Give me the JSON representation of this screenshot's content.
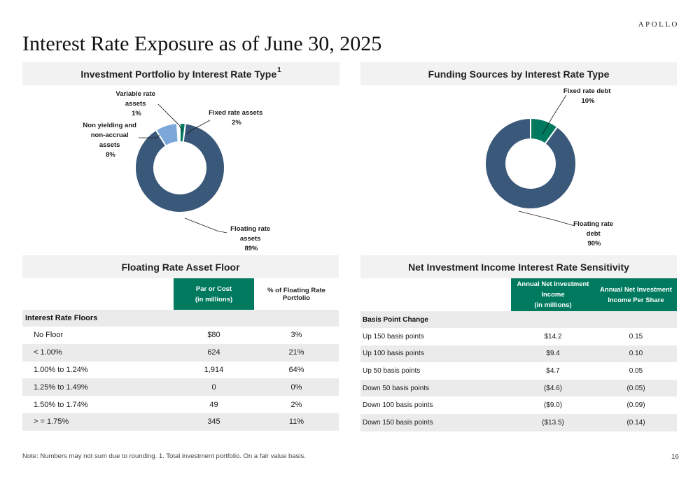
{
  "brand": "APOLLO",
  "title": "Interest Rate Exposure as of June 30, 2025",
  "investment_chart": {
    "header": "Investment Portfolio by Interest Rate Type",
    "header_sup": "1",
    "labels": {
      "variable": [
        "Variable rate",
        "assets",
        "1%"
      ],
      "fixed": [
        "Fixed rate assets",
        "2%"
      ],
      "nonyield": [
        "Non yielding and",
        "non-accrual",
        "assets",
        "8%"
      ],
      "floating": [
        "Floating rate",
        "assets",
        "89%"
      ]
    }
  },
  "funding_chart": {
    "header": "Funding Sources by Interest Rate Type",
    "labels": {
      "fixed": [
        "Fixed rate debt",
        "10%"
      ],
      "floating": [
        "Floating rate",
        "debt",
        "90%"
      ]
    }
  },
  "chart_data": [
    {
      "type": "pie",
      "title": "Investment Portfolio by Interest Rate Type",
      "donut": true,
      "categories": [
        "Fixed rate assets",
        "Floating rate assets",
        "Non yielding and non-accrual assets",
        "Variable rate assets"
      ],
      "values": [
        2,
        89,
        8,
        1
      ],
      "colors": [
        "#007a5e",
        "#3a5879",
        "#7ba7d9",
        "#ffffff"
      ]
    },
    {
      "type": "pie",
      "title": "Funding Sources by Interest Rate Type",
      "donut": true,
      "categories": [
        "Fixed rate debt",
        "Floating rate debt"
      ],
      "values": [
        10,
        90
      ],
      "colors": [
        "#007a5e",
        "#3a5879"
      ]
    }
  ],
  "floor_table": {
    "header": "Floating Rate Asset Floor",
    "col1": [
      "Par or Cost",
      "(in millions)"
    ],
    "col2": "% of Floating Rate Portfolio",
    "section": "Interest Rate Floors",
    "rows": [
      {
        "label": "No Floor",
        "par": "$80",
        "pct": "3%"
      },
      {
        "label": "< 1.00%",
        "par": "624",
        "pct": "21%"
      },
      {
        "label": "1.00% to 1.24%",
        "par": "1,914",
        "pct": "64%"
      },
      {
        "label": "1.25% to 1.49%",
        "par": "0",
        "pct": "0%"
      },
      {
        "label": "1.50% to 1.74%",
        "par": "49",
        "pct": "2%"
      },
      {
        "label": "> = 1.75%",
        "par": "345",
        "pct": "11%"
      }
    ]
  },
  "nii_table": {
    "header": "Net Investment Income Interest Rate Sensitivity",
    "col1": [
      "Annual Net Investment",
      "Income",
      "(in millions)"
    ],
    "col2": [
      "Annual Net Investment",
      "Income Per Share"
    ],
    "section": "Basis Point Change",
    "rows": [
      {
        "label": "Up 150 basis points",
        "income": "$14.2",
        "per_share": "0.15"
      },
      {
        "label": "Up 100 basis points",
        "income": "$9.4",
        "per_share": "0.10"
      },
      {
        "label": "Up 50 basis points",
        "income": "$4.7",
        "per_share": "0.05"
      },
      {
        "label": "Down 50 basis points",
        "income": "($4.6)",
        "per_share": "(0.05)"
      },
      {
        "label": "Down 100 basis points",
        "income": "($9.0)",
        "per_share": "(0.09)"
      },
      {
        "label": "Down 150 basis points",
        "income": "($13.5)",
        "per_share": "(0.14)"
      }
    ]
  },
  "footnote": "Note:  Numbers may not sum due to rounding. 1. Total investment portfolio. On a fair value basis.",
  "page_number": "16"
}
